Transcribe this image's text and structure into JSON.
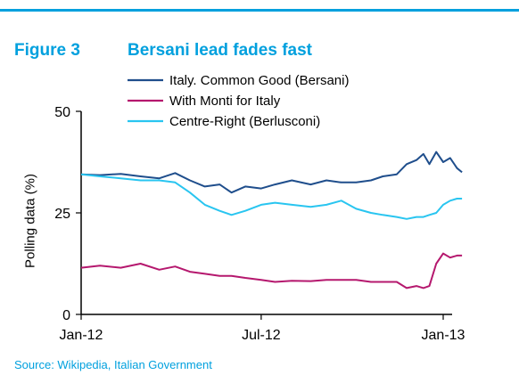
{
  "header": {
    "figure_number": "Figure 3",
    "title": "Bersani lead fades fast"
  },
  "source": "Source: Wikipedia, Italian Government",
  "colors": {
    "accent": "#00a0de",
    "italy_common_good": "#1f4e8c",
    "with_monti": "#b5186e",
    "centre_right": "#29c5f0"
  },
  "chart_data": {
    "type": "line",
    "title": "Bersani lead fades fast",
    "xlabel": "",
    "ylabel": "Polling data (%)",
    "ylim": [
      0,
      50
    ],
    "yticks": [
      0,
      25,
      50
    ],
    "xlim": [
      "2012-01-01",
      "2013-02-01"
    ],
    "xticks": [
      {
        "date": "2012-01-01",
        "label": "Jan-12"
      },
      {
        "date": "2012-07-01",
        "label": "Jul-12"
      },
      {
        "date": "2013-01-01",
        "label": "Jan-13"
      }
    ],
    "grid": false,
    "legend": "top-center",
    "series": [
      {
        "name": "Italy. Common Good (Bersani)",
        "color": "#1f4e8c",
        "x": [
          "2012-01-01",
          "2012-01-20",
          "2012-02-10",
          "2012-03-01",
          "2012-03-20",
          "2012-04-05",
          "2012-04-20",
          "2012-05-05",
          "2012-05-20",
          "2012-06-01",
          "2012-06-15",
          "2012-07-01",
          "2012-07-15",
          "2012-08-01",
          "2012-08-20",
          "2012-09-05",
          "2012-09-20",
          "2012-10-05",
          "2012-10-20",
          "2012-11-01",
          "2012-11-15",
          "2012-11-25",
          "2012-12-05",
          "2012-12-12",
          "2012-12-18",
          "2012-12-25",
          "2013-01-01",
          "2013-01-08",
          "2013-01-15",
          "2013-01-20"
        ],
        "values": [
          34.5,
          34.3,
          34.6,
          34.0,
          33.5,
          34.8,
          33.0,
          31.5,
          32.0,
          30.0,
          31.5,
          31.0,
          32.0,
          33.0,
          32.0,
          33.0,
          32.5,
          32.5,
          33.0,
          34.0,
          34.5,
          37.0,
          38.0,
          39.5,
          37.0,
          40.0,
          37.5,
          38.5,
          36.0,
          35.0
        ]
      },
      {
        "name": "With Monti for Italy",
        "color": "#b5186e",
        "x": [
          "2012-01-01",
          "2012-01-20",
          "2012-02-10",
          "2012-03-01",
          "2012-03-20",
          "2012-04-05",
          "2012-04-20",
          "2012-05-05",
          "2012-05-20",
          "2012-06-01",
          "2012-06-15",
          "2012-07-01",
          "2012-07-15",
          "2012-08-01",
          "2012-08-20",
          "2012-09-05",
          "2012-09-20",
          "2012-10-05",
          "2012-10-20",
          "2012-11-01",
          "2012-11-15",
          "2012-11-25",
          "2012-12-05",
          "2012-12-12",
          "2012-12-18",
          "2012-12-25",
          "2013-01-01",
          "2013-01-08",
          "2013-01-15",
          "2013-01-20"
        ],
        "values": [
          11.5,
          12.0,
          11.5,
          12.5,
          11.0,
          11.8,
          10.5,
          10.0,
          9.5,
          9.5,
          9.0,
          8.5,
          8.0,
          8.3,
          8.2,
          8.5,
          8.5,
          8.5,
          8.0,
          8.0,
          8.0,
          6.5,
          7.0,
          6.5,
          7.0,
          12.5,
          15.0,
          14.0,
          14.5,
          14.5
        ]
      },
      {
        "name": "Centre-Right (Berlusconi)",
        "color": "#29c5f0",
        "x": [
          "2012-01-01",
          "2012-01-20",
          "2012-02-10",
          "2012-03-01",
          "2012-03-20",
          "2012-04-05",
          "2012-04-20",
          "2012-05-05",
          "2012-05-20",
          "2012-06-01",
          "2012-06-15",
          "2012-07-01",
          "2012-07-15",
          "2012-08-01",
          "2012-08-20",
          "2012-09-05",
          "2012-09-20",
          "2012-10-05",
          "2012-10-20",
          "2012-11-01",
          "2012-11-15",
          "2012-11-25",
          "2012-12-05",
          "2012-12-12",
          "2012-12-18",
          "2012-12-25",
          "2013-01-01",
          "2013-01-08",
          "2013-01-15",
          "2013-01-20"
        ],
        "values": [
          34.5,
          34.0,
          33.5,
          33.0,
          33.0,
          32.5,
          30.0,
          27.0,
          25.5,
          24.5,
          25.5,
          27.0,
          27.5,
          27.0,
          26.5,
          27.0,
          28.0,
          26.0,
          25.0,
          24.5,
          24.0,
          23.5,
          24.0,
          24.0,
          24.5,
          25.0,
          27.0,
          28.0,
          28.5,
          28.5
        ]
      }
    ]
  }
}
